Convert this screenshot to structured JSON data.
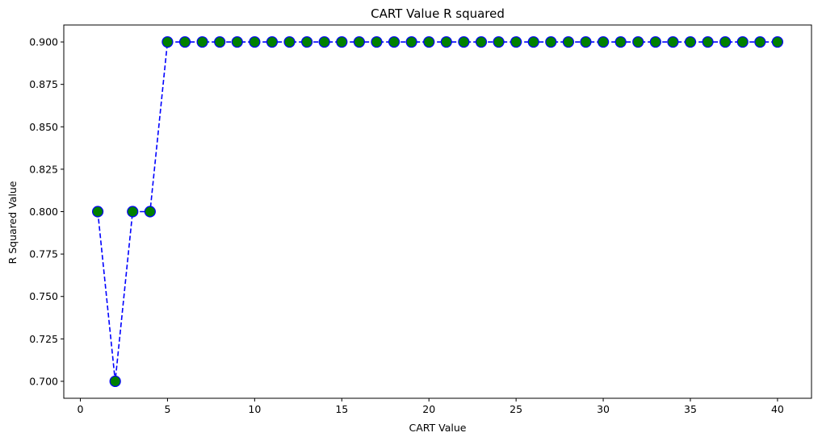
{
  "chart_data": {
    "type": "line",
    "title": "CART Value R squared",
    "xlabel": "CART Value",
    "ylabel": "R Squared Value",
    "xlim": [
      -0.95,
      41.95
    ],
    "ylim": [
      0.69,
      0.91
    ],
    "x_ticks": [
      0,
      5,
      10,
      15,
      20,
      25,
      30,
      35,
      40
    ],
    "y_ticks": [
      0.7,
      0.725,
      0.75,
      0.775,
      0.8,
      0.825,
      0.85,
      0.875,
      0.9
    ],
    "x_tick_labels": [
      "0",
      "5",
      "10",
      "15",
      "20",
      "25",
      "30",
      "35",
      "40"
    ],
    "y_tick_labels": [
      "0.700",
      "0.725",
      "0.750",
      "0.775",
      "0.800",
      "0.825",
      "0.850",
      "0.875",
      "0.900"
    ],
    "grid": false,
    "line_color": "#0000ff",
    "line_style": "dashed",
    "marker_face_color": "#008000",
    "marker_edge_color": "#0000ff",
    "series": [
      {
        "x": [
          1,
          2,
          3,
          4,
          5,
          6,
          7,
          8,
          9,
          10,
          11,
          12,
          13,
          14,
          15,
          16,
          17,
          18,
          19,
          20,
          21,
          22,
          23,
          24,
          25,
          26,
          27,
          28,
          29,
          30,
          31,
          32,
          33,
          34,
          35,
          36,
          37,
          38,
          39,
          40
        ],
        "values": [
          0.8,
          0.7,
          0.8,
          0.8,
          0.9,
          0.9,
          0.9,
          0.9,
          0.9,
          0.9,
          0.9,
          0.9,
          0.9,
          0.9,
          0.9,
          0.9,
          0.9,
          0.9,
          0.9,
          0.9,
          0.9,
          0.9,
          0.9,
          0.9,
          0.9,
          0.9,
          0.9,
          0.9,
          0.9,
          0.9,
          0.9,
          0.9,
          0.9,
          0.9,
          0.9,
          0.9,
          0.9,
          0.9,
          0.9,
          0.9
        ]
      }
    ]
  }
}
